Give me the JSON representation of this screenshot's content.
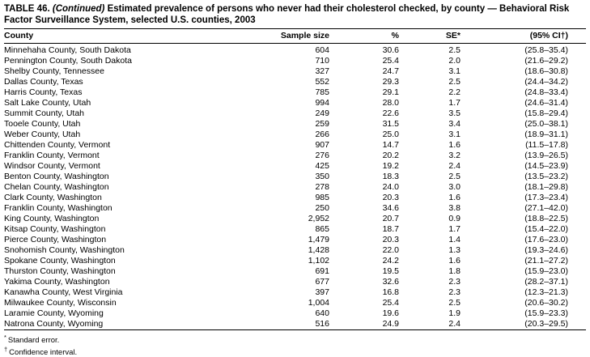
{
  "title": {
    "prefix": "TABLE 46.",
    "continued": "(Continued)",
    "text": "Estimated prevalence of persons who never had their cholesterol checked, by county — Behavioral Risk Factor Surveillance System, selected U.S. counties, 2003"
  },
  "table": {
    "columns": [
      "County",
      "Sample size",
      "%",
      "SE*",
      "(95% CI†)"
    ],
    "column_keys": [
      "county",
      "sample-size",
      "percent",
      "se",
      "ci"
    ],
    "rows": [
      [
        "Minnehaha County, South Dakota",
        "604",
        "30.6",
        "2.5",
        "(25.8–35.4)"
      ],
      [
        "Pennington County, South Dakota",
        "710",
        "25.4",
        "2.0",
        "(21.6–29.2)"
      ],
      [
        "Shelby County, Tennessee",
        "327",
        "24.7",
        "3.1",
        "(18.6–30.8)"
      ],
      [
        "Dallas County, Texas",
        "552",
        "29.3",
        "2.5",
        "(24.4–34.2)"
      ],
      [
        "Harris County, Texas",
        "785",
        "29.1",
        "2.2",
        "(24.8–33.4)"
      ],
      [
        "Salt Lake County, Utah",
        "994",
        "28.0",
        "1.7",
        "(24.6–31.4)"
      ],
      [
        "Summit County, Utah",
        "249",
        "22.6",
        "3.5",
        "(15.8–29.4)"
      ],
      [
        "Tooele County, Utah",
        "259",
        "31.5",
        "3.4",
        "(25.0–38.1)"
      ],
      [
        "Weber County, Utah",
        "266",
        "25.0",
        "3.1",
        "(18.9–31.1)"
      ],
      [
        "Chittenden County, Vermont",
        "907",
        "14.7",
        "1.6",
        "(11.5–17.8)"
      ],
      [
        "Franklin County, Vermont",
        "276",
        "20.2",
        "3.2",
        "(13.9–26.5)"
      ],
      [
        "Windsor County, Vermont",
        "425",
        "19.2",
        "2.4",
        "(14.5–23.9)"
      ],
      [
        "Benton County, Washington",
        "350",
        "18.3",
        "2.5",
        "(13.5–23.2)"
      ],
      [
        "Chelan County, Washington",
        "278",
        "24.0",
        "3.0",
        "(18.1–29.8)"
      ],
      [
        "Clark County, Washington",
        "985",
        "20.3",
        "1.6",
        "(17.3–23.4)"
      ],
      [
        "Franklin County, Washington",
        "250",
        "34.6",
        "3.8",
        "(27.1–42.0)"
      ],
      [
        "King County, Washington",
        "2,952",
        "20.7",
        "0.9",
        "(18.8–22.5)"
      ],
      [
        "Kitsap County, Washington",
        "865",
        "18.7",
        "1.7",
        "(15.4–22.0)"
      ],
      [
        "Pierce County, Washington",
        "1,479",
        "20.3",
        "1.4",
        "(17.6–23.0)"
      ],
      [
        "Snohomish County, Washington",
        "1,428",
        "22.0",
        "1.3",
        "(19.3–24.6)"
      ],
      [
        "Spokane County, Washington",
        "1,102",
        "24.2",
        "1.6",
        "(21.1–27.2)"
      ],
      [
        "Thurston County, Washington",
        "691",
        "19.5",
        "1.8",
        "(15.9–23.0)"
      ],
      [
        "Yakima County, Washington",
        "677",
        "32.6",
        "2.3",
        "(28.2–37.1)"
      ],
      [
        "Kanawha County, West Virginia",
        "397",
        "16.8",
        "2.3",
        "(12.3–21.3)"
      ],
      [
        "Milwaukee County, Wisconsin",
        "1,004",
        "25.4",
        "2.5",
        "(20.6–30.2)"
      ],
      [
        "Laramie County, Wyoming",
        "640",
        "19.6",
        "1.9",
        "(15.9–23.3)"
      ],
      [
        "Natrona County, Wyoming",
        "516",
        "24.9",
        "2.4",
        "(20.3–29.5)"
      ]
    ]
  },
  "footnotes": [
    {
      "marker": "*",
      "text": "Standard error."
    },
    {
      "marker": "†",
      "text": "Confidence interval."
    }
  ]
}
